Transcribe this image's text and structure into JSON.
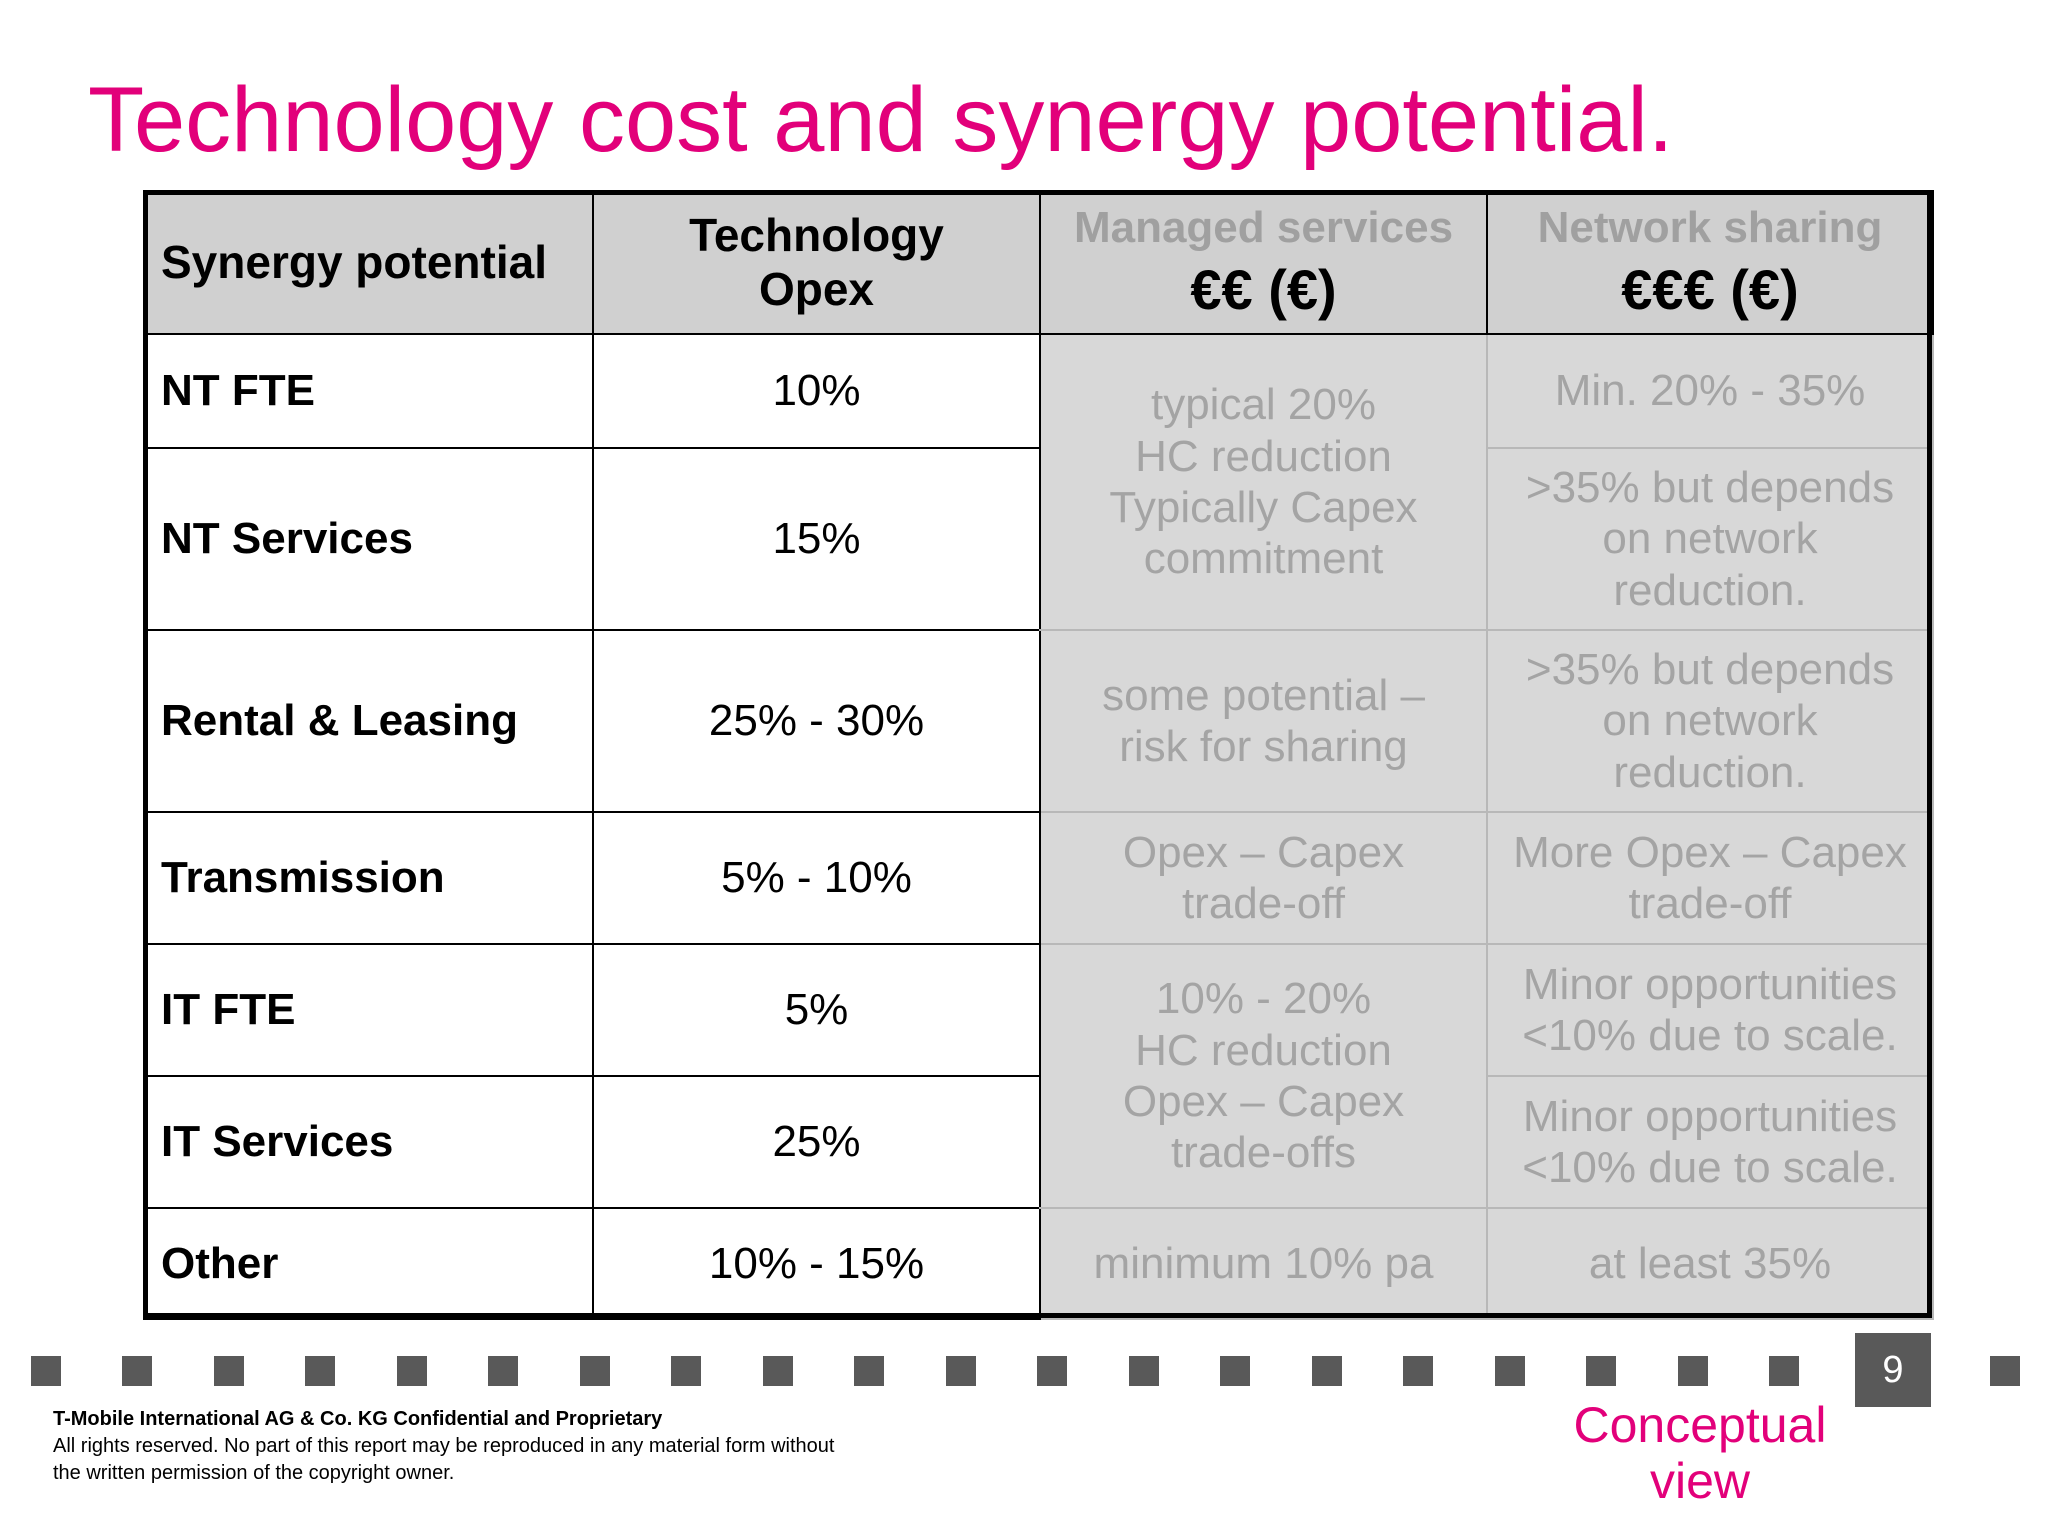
{
  "title": "Technology cost and synergy potential.",
  "table": {
    "header": {
      "col1": "Synergy potential",
      "col2_line1": "Technology",
      "col2_line2": "Opex",
      "col3_title": "Managed services",
      "col3_euro": "€€ (€)",
      "col4_title": "Network sharing",
      "col4_euro": "€€€ (€)"
    },
    "rows": [
      {
        "label": "NT FTE",
        "opex": "10%"
      },
      {
        "label": "NT Services",
        "opex": "15%"
      },
      {
        "label": "Rental & Leasing",
        "opex": "25% - 30%"
      },
      {
        "label": "Transmission",
        "opex": "5% - 10%"
      },
      {
        "label": "IT FTE",
        "opex": "5%"
      },
      {
        "label": "IT Services",
        "opex": "25%"
      },
      {
        "label": "Other",
        "opex": "10% - 15%"
      }
    ],
    "managed": {
      "nt": [
        "typical 20%",
        "HC reduction",
        "Typically Capex",
        "commitment"
      ],
      "rental": [
        "some potential –",
        "risk for sharing"
      ],
      "transmission": [
        "Opex – Capex",
        "trade-off"
      ],
      "it": [
        "10% - 20%",
        "HC reduction",
        "Opex – Capex",
        "trade-offs"
      ],
      "other": "minimum 10% pa"
    },
    "network": {
      "nt_fte": "Min. 20% - 35%",
      "nt_services": [
        ">35% but depends",
        "on network",
        "reduction."
      ],
      "rental": [
        ">35% but depends",
        "on network",
        "reduction."
      ],
      "transmission": [
        "More Opex – Capex",
        "trade-off"
      ],
      "it_fte": [
        "Minor opportunities",
        "<10% due to scale."
      ],
      "it_services": [
        "Minor opportunities",
        "<10% due to scale."
      ],
      "other": "at least 35%"
    }
  },
  "footer": {
    "page_number": "9",
    "company": "T-Mobile International AG & Co. KG Confidential and Proprietary",
    "rights_line1": "All rights reserved. No part of this report may be reproduced in any material form without",
    "rights_line2": "the written permission of the copyright owner.",
    "view_line1": "Conceptual",
    "view_line2": "view"
  }
}
